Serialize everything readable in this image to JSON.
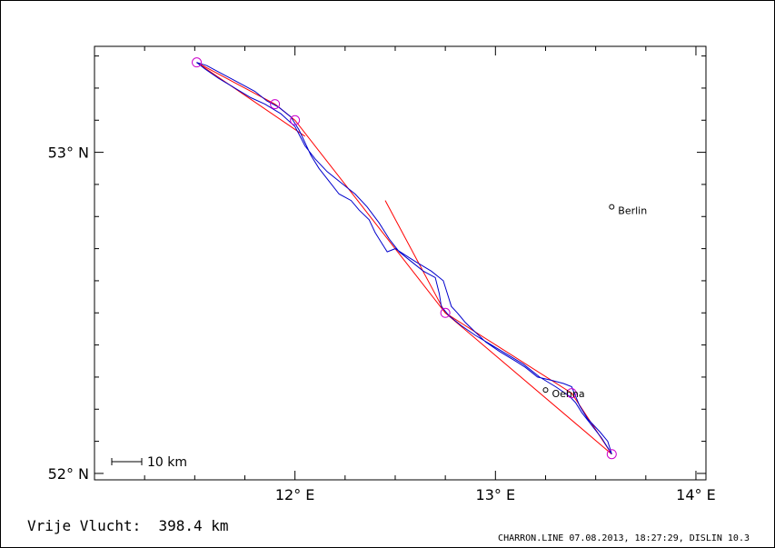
{
  "map": {
    "lon_range": [
      11.0,
      14.05
    ],
    "lat_range": [
      51.98,
      53.33
    ],
    "axes": {
      "x_ticks": [
        {
          "value": 12,
          "label": "12° E"
        },
        {
          "value": 13,
          "label": "13° E"
        },
        {
          "value": 14,
          "label": "14° E"
        }
      ],
      "y_ticks": [
        {
          "value": 52,
          "label": "52° N"
        },
        {
          "value": 53,
          "label": "53° N"
        }
      ]
    },
    "cities": [
      {
        "name": "Berlin",
        "lon": 13.58,
        "lat": 52.83
      },
      {
        "name": "Oehna",
        "lon": 13.25,
        "lat": 52.26
      }
    ],
    "turnpoints": [
      {
        "lon": 11.51,
        "lat": 53.28
      },
      {
        "lon": 11.9,
        "lat": 53.15
      },
      {
        "lon": 12.0,
        "lat": 53.1
      },
      {
        "lon": 12.75,
        "lat": 52.5
      },
      {
        "lon": 13.38,
        "lat": 52.25
      },
      {
        "lon": 13.58,
        "lat": 52.06
      }
    ],
    "task_lines": [
      [
        [
          11.51,
          53.28
        ],
        [
          11.9,
          53.15
        ],
        [
          12.0,
          53.1
        ],
        [
          12.75,
          52.5
        ],
        [
          13.58,
          52.06
        ]
      ],
      [
        [
          11.51,
          53.28
        ],
        [
          12.05,
          53.05
        ]
      ],
      [
        [
          12.75,
          52.5
        ],
        [
          13.38,
          52.25
        ],
        [
          13.58,
          52.06
        ]
      ],
      [
        [
          12.45,
          52.85
        ],
        [
          12.75,
          52.5
        ]
      ]
    ],
    "track": [
      [
        13.58,
        52.06
      ],
      [
        13.56,
        52.1
      ],
      [
        13.52,
        52.13
      ],
      [
        13.46,
        52.17
      ],
      [
        13.42,
        52.21
      ],
      [
        13.4,
        52.24
      ],
      [
        13.38,
        52.27
      ],
      [
        13.34,
        52.28
      ],
      [
        13.28,
        52.29
      ],
      [
        13.21,
        52.3
      ],
      [
        13.15,
        52.33
      ],
      [
        13.1,
        52.35
      ],
      [
        13.02,
        52.38
      ],
      [
        12.95,
        52.41
      ],
      [
        12.9,
        52.44
      ],
      [
        12.85,
        52.47
      ],
      [
        12.81,
        52.5
      ],
      [
        12.78,
        52.52
      ],
      [
        12.76,
        52.56
      ],
      [
        12.74,
        52.6
      ],
      [
        12.68,
        52.63
      ],
      [
        12.6,
        52.66
      ],
      [
        12.55,
        52.68
      ],
      [
        12.5,
        52.7
      ],
      [
        12.46,
        52.69
      ],
      [
        12.43,
        52.72
      ],
      [
        12.4,
        52.75
      ],
      [
        12.37,
        52.79
      ],
      [
        12.32,
        52.82
      ],
      [
        12.28,
        52.85
      ],
      [
        12.22,
        52.87
      ],
      [
        12.17,
        52.91
      ],
      [
        12.12,
        52.95
      ],
      [
        12.08,
        52.99
      ],
      [
        12.05,
        53.03
      ],
      [
        12.02,
        53.07
      ],
      [
        11.98,
        53.11
      ],
      [
        11.92,
        53.14
      ],
      [
        11.86,
        53.16
      ],
      [
        11.8,
        53.19
      ],
      [
        11.74,
        53.21
      ],
      [
        11.68,
        53.23
      ],
      [
        11.62,
        53.25
      ],
      [
        11.56,
        53.27
      ],
      [
        11.51,
        53.28
      ],
      [
        11.55,
        53.26
      ],
      [
        11.62,
        53.23
      ],
      [
        11.7,
        53.2
      ],
      [
        11.78,
        53.17
      ],
      [
        11.85,
        53.15
      ],
      [
        11.93,
        53.12
      ],
      [
        12.0,
        53.08
      ],
      [
        12.05,
        53.02
      ],
      [
        12.1,
        52.98
      ],
      [
        12.16,
        52.94
      ],
      [
        12.24,
        52.9
      ],
      [
        12.3,
        52.87
      ],
      [
        12.36,
        52.83
      ],
      [
        12.42,
        52.78
      ],
      [
        12.47,
        52.73
      ],
      [
        12.52,
        52.69
      ],
      [
        12.58,
        52.66
      ],
      [
        12.64,
        52.63
      ],
      [
        12.7,
        52.61
      ],
      [
        12.72,
        52.56
      ],
      [
        12.73,
        52.52
      ],
      [
        12.77,
        52.49
      ],
      [
        12.83,
        52.46
      ],
      [
        12.9,
        52.43
      ],
      [
        12.98,
        52.4
      ],
      [
        13.06,
        52.37
      ],
      [
        13.14,
        52.34
      ],
      [
        13.22,
        52.3
      ],
      [
        13.3,
        52.27
      ],
      [
        13.37,
        52.24
      ],
      [
        13.4,
        52.22
      ],
      [
        13.43,
        52.19
      ],
      [
        13.48,
        52.15
      ],
      [
        13.53,
        52.11
      ],
      [
        13.58,
        52.06
      ]
    ]
  },
  "scale_bar": {
    "label": "10 km"
  },
  "summary": {
    "text": "Vrije Vlucht:  398.4 km"
  },
  "footer": {
    "text": "CHARRON.LINE 07.08.2013, 18:27:29, DISLIN 10.3"
  },
  "colors": {
    "track": "#0000cc",
    "task": "#ff0000",
    "turnpoint": "#cc00cc",
    "frame": "#000000"
  }
}
